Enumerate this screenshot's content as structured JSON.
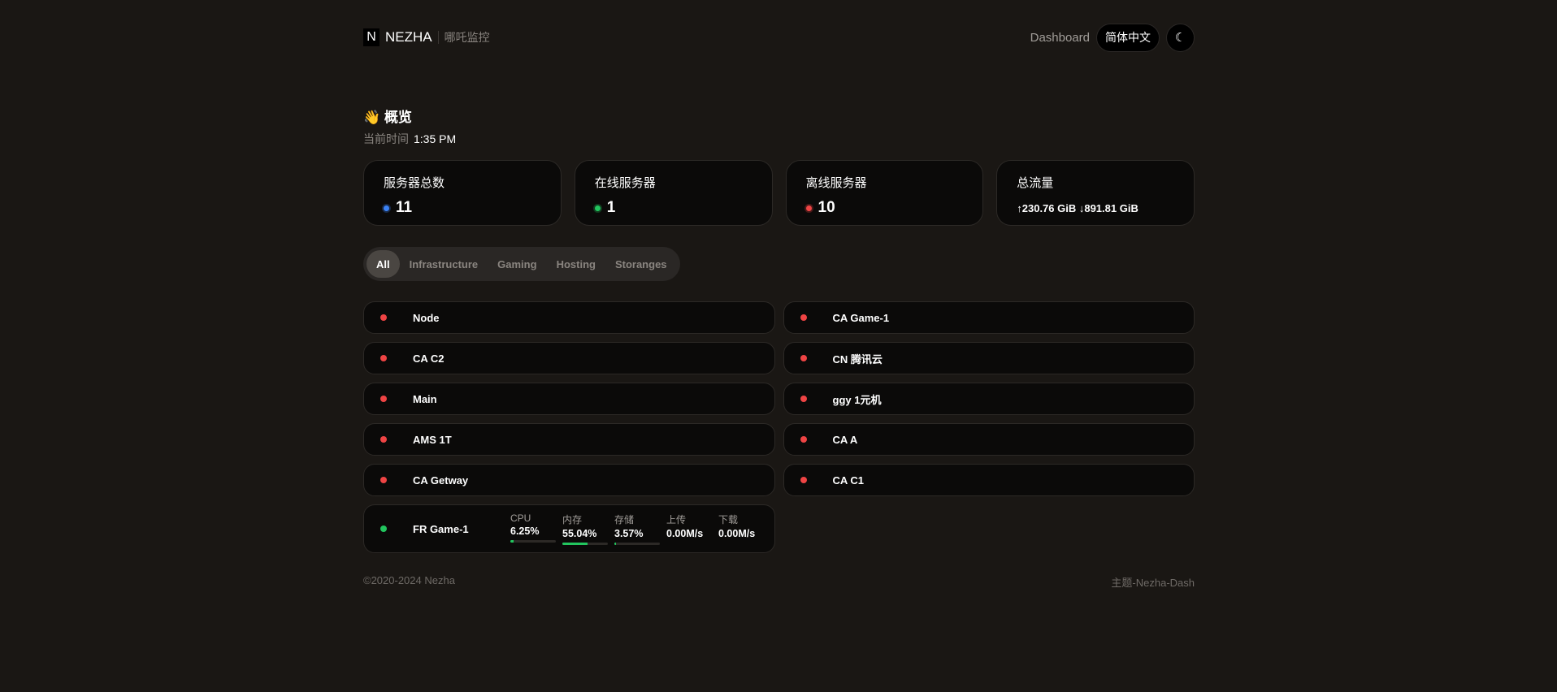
{
  "header": {
    "logo_letter": "N",
    "brand": "NEZHA",
    "subtitle": "哪吒监控",
    "dashboard_link": "Dashboard",
    "language": "简体中文",
    "theme_icon": "moon-icon"
  },
  "overview": {
    "emoji": "👋",
    "title": "概览",
    "time_label": "当前时间",
    "time": "1:35 PM"
  },
  "stats": [
    {
      "label": "服务器总数",
      "value": "11",
      "color": "#3b82f6"
    },
    {
      "label": "在线服务器",
      "value": "1",
      "color": "#22c55e"
    },
    {
      "label": "离线服务器",
      "value": "10",
      "color": "#ef4444"
    },
    {
      "label": "总流量",
      "value": "↑230.76 GiB ↓891.81 GiB"
    }
  ],
  "tabs": [
    "All",
    "Infrastructure",
    "Gaming",
    "Hosting",
    "Storanges"
  ],
  "active_tab": "All",
  "servers": [
    {
      "name": "Node",
      "status": "offline"
    },
    {
      "name": "CA Game-1",
      "status": "offline"
    },
    {
      "name": "CA C2",
      "status": "offline"
    },
    {
      "name": "CN 腾讯云",
      "status": "offline"
    },
    {
      "name": "Main",
      "status": "offline"
    },
    {
      "name": "ggy 1元机",
      "status": "offline"
    },
    {
      "name": "AMS 1T",
      "status": "offline"
    },
    {
      "name": "CA A",
      "status": "offline"
    },
    {
      "name": "CA Getway",
      "status": "offline"
    },
    {
      "name": "CA C1",
      "status": "offline"
    },
    {
      "name": "FR Game-1",
      "status": "online",
      "metrics": {
        "cpu_label": "CPU",
        "cpu": "6.25%",
        "cpu_pct": 6.25,
        "mem_label": "内存",
        "mem": "55.04%",
        "mem_pct": 55.04,
        "disk_label": "存储",
        "disk": "3.57%",
        "disk_pct": 3.57,
        "up_label": "上传",
        "up": "0.00M/s",
        "down_label": "下载",
        "down": "0.00M/s"
      }
    }
  ],
  "colors": {
    "online": "#22c55e",
    "offline": "#ef4444"
  },
  "footer": {
    "copyright": "©2020-2024 Nezha",
    "theme": "主题-Nezha-Dash"
  }
}
